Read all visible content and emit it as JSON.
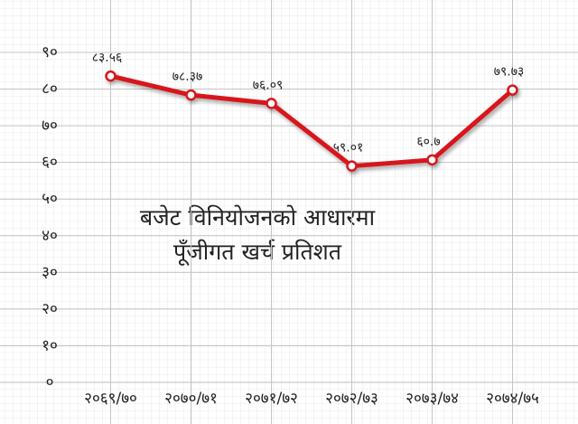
{
  "chart_data": {
    "type": "line",
    "title": "बजेट विनियोजनको आधारमा",
    "subtitle": "पूँजीगत खर्च प्रतिशत",
    "categories": [
      "२०६९/७०",
      "२०७०/७१",
      "२०७१/७२",
      "२०७२/७३",
      "२०७३/७४",
      "२०७४/७५"
    ],
    "series": [
      {
        "color": "#d7191f",
        "values": [
          83.56,
          78.37,
          76.09,
          59.01,
          60.7,
          79.73
        ],
        "value_labels": [
          "८३.५६",
          "७८.३७",
          "७६.०९",
          "५९.०१",
          "६०.७",
          "७९.७३"
        ]
      }
    ],
    "ylim": [
      0,
      90
    ],
    "yticks": [
      {
        "value": 0,
        "label": "०"
      },
      {
        "value": 10,
        "label": "१०"
      },
      {
        "value": 20,
        "label": "२०"
      },
      {
        "value": 30,
        "label": "३०"
      },
      {
        "value": 40,
        "label": "४०"
      },
      {
        "value": 50,
        "label": "५०"
      },
      {
        "value": 60,
        "label": "६०"
      },
      {
        "value": 70,
        "label": "७०"
      },
      {
        "value": 80,
        "label": "८०"
      },
      {
        "value": 90,
        "label": "९०"
      }
    ],
    "grid": true
  }
}
